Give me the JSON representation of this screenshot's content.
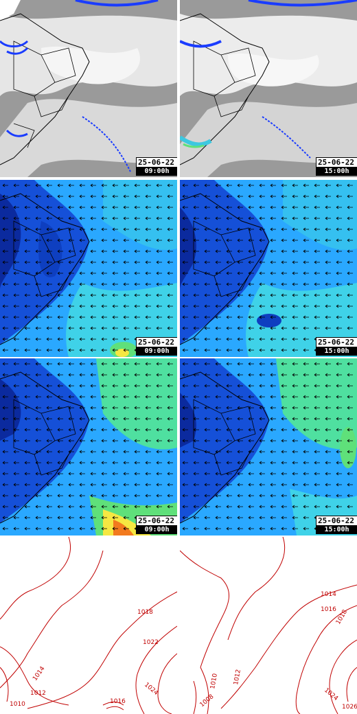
{
  "rows": [
    {
      "kind": "satellite-ir",
      "panels": [
        {
          "date": "25-06-22",
          "time": "09:00h"
        },
        {
          "date": "25-06-22",
          "time": "15:00h"
        }
      ]
    },
    {
      "kind": "wind-speed-850",
      "panels": [
        {
          "date": "25-06-22",
          "time": "09:00h"
        },
        {
          "date": "25-06-22",
          "time": "15:00h"
        }
      ]
    },
    {
      "kind": "wind-speed-surface",
      "panels": [
        {
          "date": "25-06-22",
          "time": "09:00h"
        },
        {
          "date": "25-06-22",
          "time": "15:00h"
        }
      ]
    },
    {
      "kind": "sea-level-pressure",
      "panels": [
        {
          "isobar_labels": [
            "1018",
            "1022",
            "1014",
            "1012",
            "1010",
            "1016",
            "1024"
          ]
        },
        {
          "isobar_labels": [
            "1014",
            "1016",
            "1018",
            "1024",
            "1010",
            "1012",
            "1008",
            "1026"
          ]
        }
      ]
    }
  ],
  "colors": {
    "cloud_gray": "#8f8f8f",
    "cloud_white": "#f2f2f2",
    "precip_blue": "#1a3cff",
    "wind_dark": "#0b2a9e",
    "wind_mid": "#1e7bff",
    "wind_light": "#3fd2e8",
    "wind_green": "#5fe07a",
    "wind_yellow": "#f5e742",
    "wind_orange": "#f27a1e",
    "isobar_red": "#c00000",
    "border_black": "#000000"
  }
}
